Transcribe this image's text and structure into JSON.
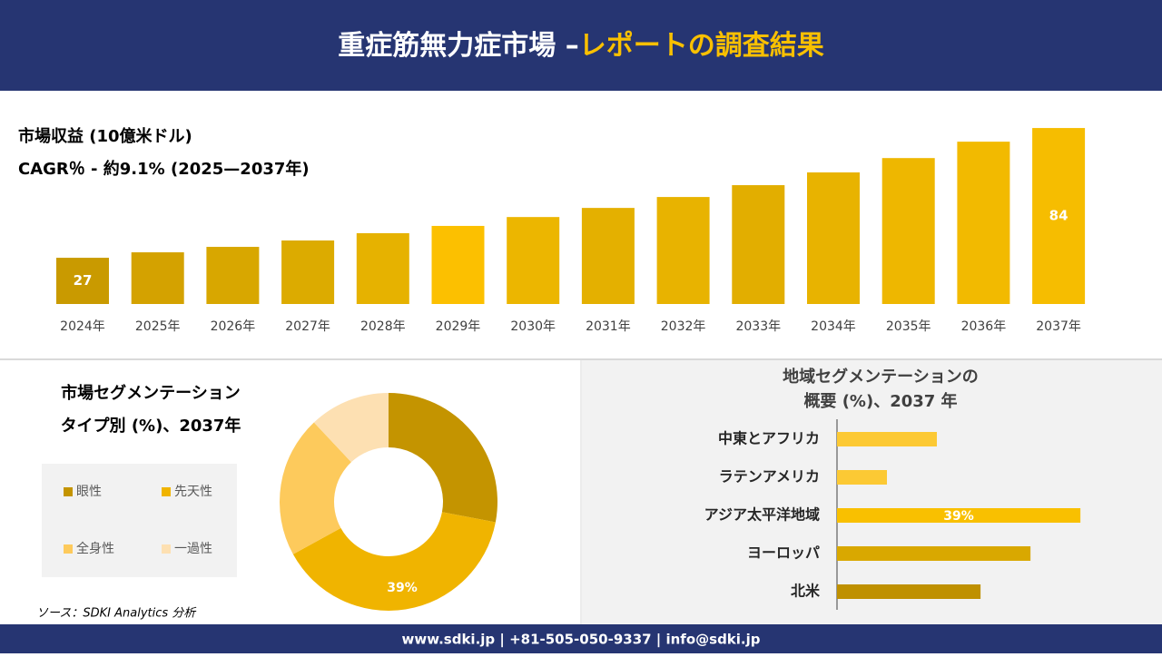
{
  "header": {
    "title_main": "重症筋無力症市場 –",
    "title_accent": "レポートの調査結果"
  },
  "footer": {
    "contact": "www.sdki.jp | +81-505-050-9337 | info@sdki.jp"
  },
  "source": "ソース：SDKI Analytics 分析",
  "chart_data": [
    {
      "type": "bar",
      "title": "市場収益 (10億米ドル)",
      "subtitle": "CAGR％ - 約9.1% (2025—2037年)",
      "categories": [
        "2024年",
        "2025年",
        "2026年",
        "2027年",
        "2028年",
        "2029年",
        "2030年",
        "2031年",
        "2032年",
        "2033年",
        "2034年",
        "2035年",
        "2036年",
        "2037年"
      ],
      "values": [
        27,
        29.4,
        31.8,
        34.6,
        37.8,
        41.0,
        44.9,
        48.9,
        53.7,
        58.9,
        64.5,
        70.8,
        78.0,
        84
      ],
      "value_labels": [
        "27",
        null,
        null,
        null,
        null,
        null,
        null,
        null,
        null,
        null,
        null,
        null,
        null,
        "84"
      ],
      "colors": [
        "#c99a00",
        "#d4a200",
        "#d8a700",
        "#dcab00",
        "#e6b200",
        "#fcc000",
        "#ecb600",
        "#e4b000",
        "#e8b300",
        "#e2ae00",
        "#e8b300",
        "#eeb700",
        "#f2ba00",
        "#f6bd00"
      ],
      "ylim": [
        6.7,
        92.4
      ]
    },
    {
      "type": "donut",
      "title": "市場セグメンテーション",
      "subtitle": "タイプ別 (%)、2037年",
      "categories": [
        "眼性",
        "先天性",
        "全身性",
        "一過性"
      ],
      "values": [
        28,
        39,
        21,
        12
      ],
      "value_labels": [
        null,
        "39%",
        null,
        null
      ],
      "colors": [
        "#c49400",
        "#f0b400",
        "#fdca5c",
        "#fde0b2"
      ]
    },
    {
      "type": "hbar",
      "title": "地域セグメンテーションの",
      "subtitle": "概要 (%)、2037 年",
      "categories": [
        "中東とアフリカ",
        "ラテンアメリカ",
        "アジア太平洋地域",
        "ヨーロッパ",
        "北米"
      ],
      "values": [
        16,
        8,
        39,
        31,
        23
      ],
      "value_labels": [
        null,
        null,
        "39%",
        null,
        null
      ],
      "colors": [
        "#fcc934",
        "#fcc934",
        "#f9c000",
        "#d9a800",
        "#bf9000"
      ],
      "xlim": [
        0,
        40
      ]
    }
  ]
}
